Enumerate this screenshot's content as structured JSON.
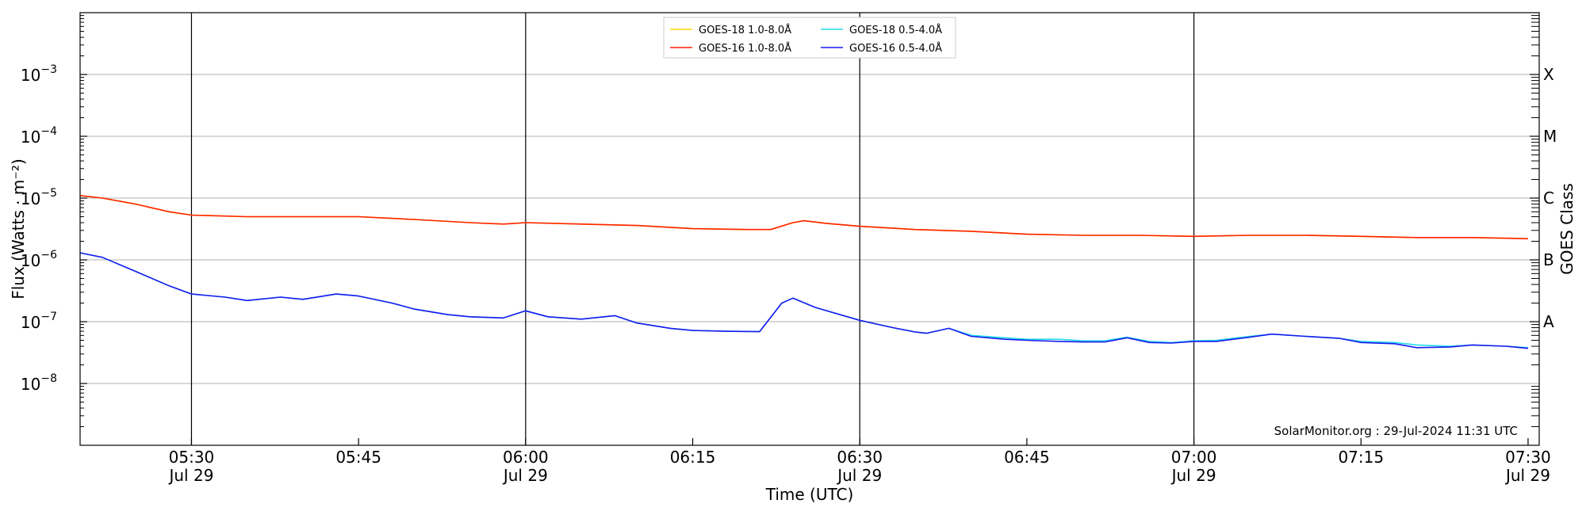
{
  "chart_data": {
    "type": "line",
    "xlabel": "Time (UTC)",
    "ylabel": "Flux (Watts · m⁻²)",
    "right_ylabel": "GOES Class",
    "y_scale": "log",
    "ylim": [
      1e-09,
      0.01
    ],
    "xlim": [
      "2024-07-29 05:20",
      "2024-07-29 07:31"
    ],
    "grid": "horizontal at decades",
    "legend_position": "top-center",
    "footer": "SolarMonitor.org : 29-Jul-2024 11:31 UTC",
    "y_ticks": [
      {
        "value": 1e-08,
        "base": "10",
        "exp": "−8"
      },
      {
        "value": 1e-07,
        "base": "10",
        "exp": "−7"
      },
      {
        "value": 1e-06,
        "base": "10",
        "exp": "−6"
      },
      {
        "value": 1e-05,
        "base": "10",
        "exp": "−5"
      },
      {
        "value": 0.0001,
        "base": "10",
        "exp": "−4"
      },
      {
        "value": 0.001,
        "base": "10",
        "exp": "−3"
      }
    ],
    "x_ticks": [
      {
        "time": "05:30",
        "line1": "05:30",
        "line2": "Jul 29"
      },
      {
        "time": "05:45",
        "line1": "05:45",
        "line2": ""
      },
      {
        "time": "06:00",
        "line1": "06:00",
        "line2": "Jul 29"
      },
      {
        "time": "06:15",
        "line1": "06:15",
        "line2": ""
      },
      {
        "time": "06:30",
        "line1": "06:30",
        "line2": "Jul 29"
      },
      {
        "time": "06:45",
        "line1": "06:45",
        "line2": ""
      },
      {
        "time": "07:00",
        "line1": "07:00",
        "line2": "Jul 29"
      },
      {
        "time": "07:15",
        "line1": "07:15",
        "line2": ""
      },
      {
        "time": "07:30",
        "line1": "07:30",
        "line2": "Jul 29"
      }
    ],
    "vlines": [
      "05:30",
      "06:00",
      "06:30",
      "07:00"
    ],
    "goes_classes": [
      {
        "label": "A",
        "value": 1e-07
      },
      {
        "label": "B",
        "value": 1e-06
      },
      {
        "label": "C",
        "value": 1e-05
      },
      {
        "label": "M",
        "value": 0.0001
      },
      {
        "label": "X",
        "value": 0.001
      }
    ],
    "series": [
      {
        "name": "GOES-18 1.0-8.0Å",
        "color": "#ffd700",
        "x": [
          "05:20",
          "05:22",
          "05:25",
          "05:28",
          "05:30",
          "05:35",
          "05:40",
          "05:45",
          "05:50",
          "05:55",
          "05:58",
          "06:00",
          "06:05",
          "06:10",
          "06:15",
          "06:20",
          "06:22",
          "06:24",
          "06:25",
          "06:27",
          "06:30",
          "06:35",
          "06:40",
          "06:45",
          "06:50",
          "06:55",
          "07:00",
          "07:05",
          "07:10",
          "07:15",
          "07:20",
          "07:25",
          "07:30"
        ],
        "y": [
          1.1e-05,
          1e-05,
          8e-06,
          6e-06,
          5.3e-06,
          5e-06,
          5e-06,
          5e-06,
          4.5e-06,
          4e-06,
          3.8e-06,
          4e-06,
          3.8e-06,
          3.6e-06,
          3.2e-06,
          3.1e-06,
          3.1e-06,
          4e-06,
          4.3e-06,
          3.9e-06,
          3.5e-06,
          3.1e-06,
          2.9e-06,
          2.6e-06,
          2.5e-06,
          2.5e-06,
          2.4e-06,
          2.5e-06,
          2.5e-06,
          2.4e-06,
          2.3e-06,
          2.3e-06,
          2.2e-06
        ]
      },
      {
        "name": "GOES-16 1.0-8.0Å",
        "color": "#ff2200",
        "x": [
          "05:20",
          "05:22",
          "05:25",
          "05:28",
          "05:30",
          "05:35",
          "05:40",
          "05:45",
          "05:50",
          "05:55",
          "05:58",
          "06:00",
          "06:05",
          "06:10",
          "06:15",
          "06:20",
          "06:22",
          "06:24",
          "06:25",
          "06:27",
          "06:30",
          "06:35",
          "06:40",
          "06:45",
          "06:50",
          "06:55",
          "07:00",
          "07:05",
          "07:10",
          "07:15",
          "07:20",
          "07:25",
          "07:30"
        ],
        "y": [
          1.1e-05,
          1e-05,
          8e-06,
          6e-06,
          5.3e-06,
          5e-06,
          5e-06,
          5e-06,
          4.5e-06,
          4e-06,
          3.8e-06,
          4e-06,
          3.8e-06,
          3.6e-06,
          3.2e-06,
          3.1e-06,
          3.1e-06,
          4e-06,
          4.3e-06,
          3.9e-06,
          3.5e-06,
          3.1e-06,
          2.9e-06,
          2.6e-06,
          2.5e-06,
          2.5e-06,
          2.4e-06,
          2.5e-06,
          2.5e-06,
          2.4e-06,
          2.3e-06,
          2.3e-06,
          2.2e-06
        ]
      },
      {
        "name": "GOES-18 0.5-4.0Å",
        "color": "#22dde8",
        "x": [
          "05:20",
          "05:22",
          "05:25",
          "05:28",
          "05:30",
          "05:33",
          "05:35",
          "05:38",
          "05:40",
          "05:43",
          "05:45",
          "05:48",
          "05:50",
          "05:53",
          "05:55",
          "05:58",
          "06:00",
          "06:02",
          "06:05",
          "06:08",
          "06:10",
          "06:13",
          "06:15",
          "06:18",
          "06:21",
          "06:23",
          "06:24",
          "06:26",
          "06:30",
          "06:33",
          "06:35",
          "06:36",
          "06:38",
          "06:40",
          "06:43",
          "06:45",
          "06:48",
          "06:50",
          "06:52",
          "06:54",
          "06:56",
          "06:58",
          "07:00",
          "07:02",
          "07:05",
          "07:07",
          "07:10",
          "07:13",
          "07:15",
          "07:18",
          "07:20",
          "07:23",
          "07:25",
          "07:28",
          "07:30"
        ],
        "y": [
          1.3e-06,
          1.1e-06,
          6.5e-07,
          3.8e-07,
          2.8e-07,
          2.5e-07,
          2.2e-07,
          2.5e-07,
          2.3e-07,
          2.8e-07,
          2.6e-07,
          2e-07,
          1.6e-07,
          1.3e-07,
          1.2e-07,
          1.15e-07,
          1.5e-07,
          1.2e-07,
          1.1e-07,
          1.25e-07,
          9.5e-08,
          7.8e-08,
          7.2e-08,
          7e-08,
          6.9e-08,
          2e-07,
          2.4e-07,
          1.7e-07,
          1.05e-07,
          8e-08,
          6.8e-08,
          6.5e-08,
          7.8e-08,
          6e-08,
          5.5e-08,
          5.2e-08,
          5.2e-08,
          4.9e-08,
          4.9e-08,
          5.6e-08,
          4.8e-08,
          4.6e-08,
          4.9e-08,
          5e-08,
          5.8e-08,
          6.3e-08,
          5.8e-08,
          5.4e-08,
          4.8e-08,
          4.6e-08,
          4.2e-08,
          4e-08,
          4.2e-08,
          4e-08,
          3.8e-08
        ]
      },
      {
        "name": "GOES-16 0.5-4.0Å",
        "color": "#1a1aee",
        "x": [
          "05:20",
          "05:22",
          "05:25",
          "05:28",
          "05:30",
          "05:33",
          "05:35",
          "05:38",
          "05:40",
          "05:43",
          "05:45",
          "05:48",
          "05:50",
          "05:53",
          "05:55",
          "05:58",
          "06:00",
          "06:02",
          "06:05",
          "06:08",
          "06:10",
          "06:13",
          "06:15",
          "06:18",
          "06:21",
          "06:23",
          "06:24",
          "06:26",
          "06:30",
          "06:33",
          "06:35",
          "06:36",
          "06:38",
          "06:40",
          "06:43",
          "06:45",
          "06:48",
          "06:50",
          "06:52",
          "06:54",
          "06:56",
          "06:58",
          "07:00",
          "07:02",
          "07:05",
          "07:07",
          "07:10",
          "07:13",
          "07:15",
          "07:18",
          "07:20",
          "07:23",
          "07:25",
          "07:28",
          "07:30"
        ],
        "y": [
          1.3e-06,
          1.1e-06,
          6.5e-07,
          3.8e-07,
          2.8e-07,
          2.5e-07,
          2.2e-07,
          2.5e-07,
          2.3e-07,
          2.8e-07,
          2.6e-07,
          2e-07,
          1.6e-07,
          1.3e-07,
          1.2e-07,
          1.15e-07,
          1.5e-07,
          1.2e-07,
          1.1e-07,
          1.25e-07,
          9.5e-08,
          7.8e-08,
          7.2e-08,
          7e-08,
          6.9e-08,
          2e-07,
          2.4e-07,
          1.7e-07,
          1.05e-07,
          8e-08,
          6.8e-08,
          6.5e-08,
          7.8e-08,
          5.8e-08,
          5.2e-08,
          5e-08,
          4.8e-08,
          4.7e-08,
          4.7e-08,
          5.5e-08,
          4.6e-08,
          4.5e-08,
          4.8e-08,
          4.8e-08,
          5.6e-08,
          6.3e-08,
          5.8e-08,
          5.4e-08,
          4.6e-08,
          4.4e-08,
          3.8e-08,
          3.9e-08,
          4.2e-08,
          4e-08,
          3.7e-08
        ]
      }
    ]
  }
}
